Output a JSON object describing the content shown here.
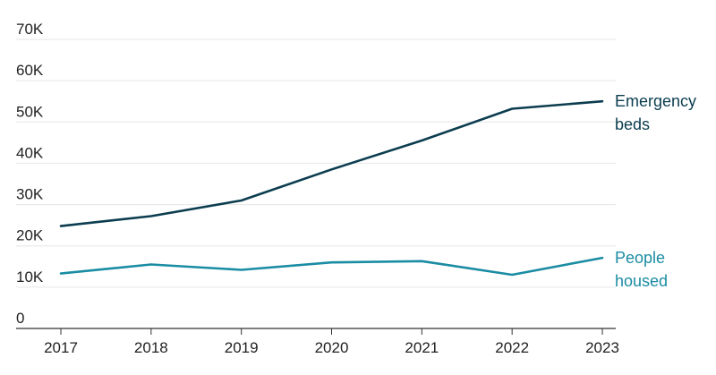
{
  "chart_data": {
    "type": "line",
    "title": "",
    "xlabel": "",
    "ylabel": "",
    "x": [
      "2017",
      "2018",
      "2019",
      "2020",
      "2021",
      "2022",
      "2023"
    ],
    "ylim": [
      0,
      70000
    ],
    "y_ticks": [
      {
        "value": 0,
        "label": "0"
      },
      {
        "value": 10000,
        "label": "10K"
      },
      {
        "value": 20000,
        "label": "20K"
      },
      {
        "value": 30000,
        "label": "30K"
      },
      {
        "value": 40000,
        "label": "40K"
      },
      {
        "value": 50000,
        "label": "50K"
      },
      {
        "value": 60000,
        "label": "60K"
      },
      {
        "value": 70000,
        "label": "70K"
      }
    ],
    "grid": true,
    "series": [
      {
        "name": "Emergency beds",
        "label_lines": [
          "Emergency",
          "beds"
        ],
        "color": "#0b3d4f",
        "values": [
          24800,
          27200,
          31000,
          38500,
          45500,
          53200,
          55000
        ]
      },
      {
        "name": "People housed",
        "label_lines": [
          "People",
          "housed"
        ],
        "color": "#1a8ca3",
        "values": [
          13300,
          15500,
          14200,
          16000,
          16300,
          13000,
          17100
        ]
      }
    ]
  }
}
